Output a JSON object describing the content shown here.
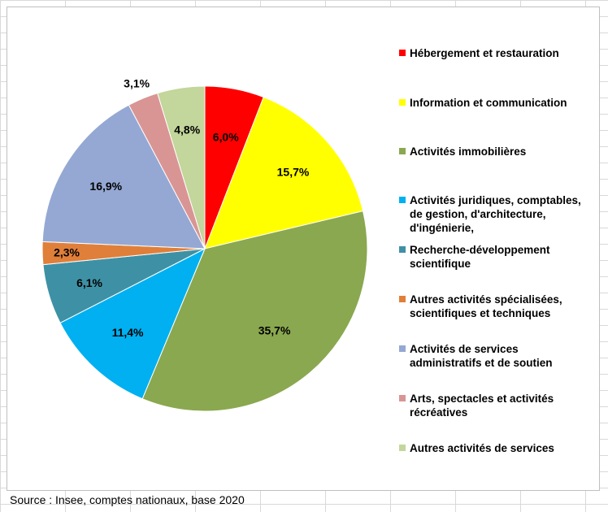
{
  "chart_data": {
    "type": "pie",
    "title": "",
    "start_angle_deg": 0,
    "direction": "clockwise",
    "legend_position": "right",
    "slices": [
      {
        "label": "Hébergement et restauration",
        "value": 6.0,
        "value_label": "6,0%",
        "color": "#ff0000",
        "label_lines": [
          "Hébergement et restauration"
        ]
      },
      {
        "label": "Information et communication",
        "value": 15.7,
        "value_label": "15,7%",
        "color": "#ffff00",
        "label_lines": [
          "Information et communication"
        ]
      },
      {
        "label": "Activités immobilières",
        "value": 35.7,
        "value_label": "35,7%",
        "color": "#8aa84f",
        "label_lines": [
          "Activités immobilières"
        ]
      },
      {
        "label": "Activités juridiques, comptables, de gestion, d'architecture, d'ingénierie,",
        "value": 11.4,
        "value_label": "11,4%",
        "color": "#00b0f0",
        "label_lines": [
          "Activités juridiques, comptables,",
          "de gestion, d'architecture,",
          "d'ingénierie,"
        ]
      },
      {
        "label": "Recherche-développement scientifique",
        "value": 6.1,
        "value_label": "6,1%",
        "color": "#3e91a5",
        "label_lines": [
          "Recherche-développement",
          "scientifique"
        ]
      },
      {
        "label": "Autres activités spécialisées, scientifiques et techniques",
        "value": 2.3,
        "value_label": "2,3%",
        "color": "#e07f3a",
        "label_lines": [
          "Autres activités spécialisées,",
          "scientifiques et techniques"
        ]
      },
      {
        "label": "Activités de services administratifs et de soutien",
        "value": 16.9,
        "value_label": "16,9%",
        "color": "#94a8d3",
        "label_lines": [
          "Activités de services",
          "administratifs et de soutien"
        ]
      },
      {
        "label": "Arts, spectacles et activités récréatives",
        "value": 3.1,
        "value_label": "3,1%",
        "color": "#d99594",
        "label_lines": [
          "Arts, spectacles et activités",
          "récréatives"
        ]
      },
      {
        "label": "Autres activités de services",
        "value": 4.8,
        "value_label": "4,8%",
        "color": "#c3d69b",
        "label_lines": [
          "Autres activités de services"
        ]
      }
    ]
  },
  "source_note": "Source : Insee, comptes nationaux, base 2020"
}
